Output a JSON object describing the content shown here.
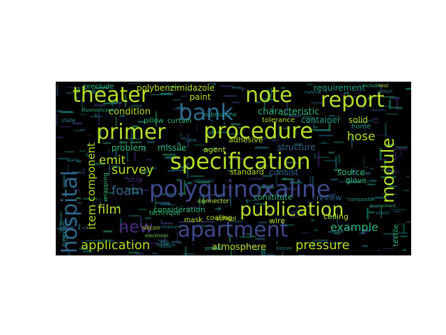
{
  "wordcloud": {
    "colors": {
      "background": "#000000",
      "yellow": "#b5de2b",
      "lime": "#6ece58",
      "green": "#35b779",
      "teal": "#1f9e89",
      "cyan": "#26828e",
      "blue": "#31688e",
      "indigo": "#3e4989",
      "purple": "#482878"
    },
    "words": [
      {
        "text": "polyquinoxaline"
      },
      {
        "text": "specification"
      },
      {
        "text": "apartment"
      },
      {
        "text": "procedure"
      },
      {
        "text": "primer"
      },
      {
        "text": "publication"
      },
      {
        "text": "report"
      },
      {
        "text": "note"
      },
      {
        "text": "theater"
      },
      {
        "text": "bank"
      },
      {
        "text": "hospital"
      },
      {
        "text": "module"
      },
      {
        "text": "new"
      },
      {
        "text": "application"
      },
      {
        "text": "pressure"
      },
      {
        "text": "survey"
      },
      {
        "text": "foam"
      },
      {
        "text": "film"
      },
      {
        "text": "example"
      },
      {
        "text": "emit"
      },
      {
        "text": "item"
      },
      {
        "text": "component"
      },
      {
        "text": "hose"
      },
      {
        "text": "polybenzimidazole"
      },
      {
        "text": "atmosphere"
      },
      {
        "text": "paint"
      },
      {
        "text": "condition"
      },
      {
        "text": "characteristic"
      },
      {
        "text": "requirement"
      },
      {
        "text": "container"
      },
      {
        "text": "solid"
      },
      {
        "text": "problem"
      },
      {
        "text": "missile"
      },
      {
        "text": "agent"
      },
      {
        "text": "adhesive"
      },
      {
        "text": "structure"
      },
      {
        "text": "consist"
      },
      {
        "text": "source"
      },
      {
        "text": "standard"
      },
      {
        "text": "consideration"
      },
      {
        "text": "ceiling"
      },
      {
        "text": "review"
      },
      {
        "text": "constitute"
      },
      {
        "text": "wire"
      },
      {
        "text": "mask"
      },
      {
        "text": "coating"
      },
      {
        "text": "glove"
      },
      {
        "text": "home"
      },
      {
        "text": "tolerance"
      },
      {
        "text": "preclude"
      },
      {
        "text": "curtain"
      },
      {
        "text": "pillow"
      },
      {
        "text": "submarine"
      },
      {
        "text": "school"
      },
      {
        "text": "ship"
      },
      {
        "text": "technique"
      },
      {
        "text": "connector"
      },
      {
        "text": "needle"
      },
      {
        "text": "textile"
      },
      {
        "text": "wrapping"
      },
      {
        "text": "fire"
      },
      {
        "text": "state"
      },
      {
        "text": "fluorosilicone"
      },
      {
        "text": "silicon"
      },
      {
        "text": "electronic"
      },
      {
        "text": "composite"
      },
      {
        "text": "environment"
      },
      {
        "text": "plastic"
      },
      {
        "text": "space"
      },
      {
        "text": "sleeve"
      },
      {
        "text": "provide"
      },
      {
        "text": "include"
      },
      {
        "text": "material"
      },
      {
        "text": "protect"
      },
      {
        "text": "test"
      },
      {
        "text": "cable"
      },
      {
        "text": "astronaut"
      },
      {
        "text": "compound"
      },
      {
        "text": "polymer"
      },
      {
        "text": "literature"
      }
    ]
  }
}
